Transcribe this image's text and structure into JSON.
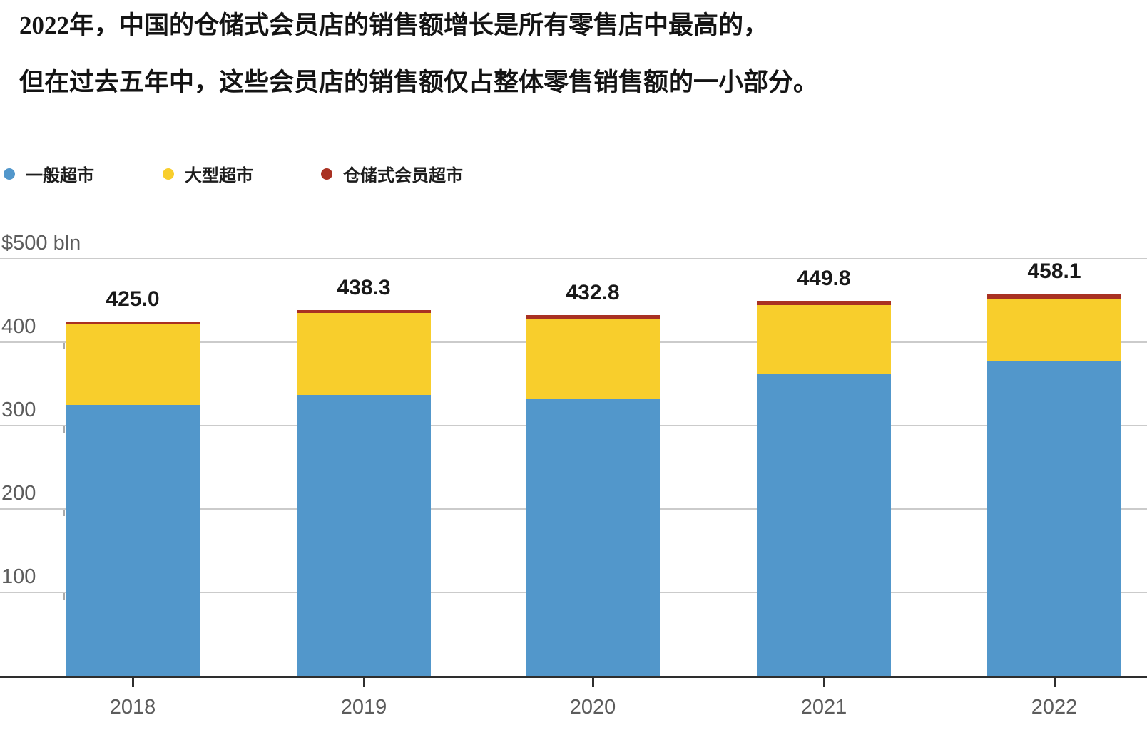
{
  "title": {
    "line1": "2022年，中国的仓储式会员店的销售额增长是所有零售店中最高的，",
    "line2": "但在过去五年中，这些会员店的销售额仅占整体零售销售额的一小部分。"
  },
  "chart_data": {
    "type": "bar",
    "stacked": true,
    "title": "",
    "xlabel": "",
    "ylabel": "$500 bln",
    "categories": [
      "2018",
      "2019",
      "2020",
      "2021",
      "2022"
    ],
    "series": [
      {
        "name": "一般超市",
        "color": "#5297cb",
        "values": [
          325.0,
          337.0,
          332.0,
          362.0,
          378.0
        ]
      },
      {
        "name": "大型超市",
        "color": "#f8ce2c",
        "values": [
          97.0,
          97.8,
          96.3,
          82.3,
          73.1
        ]
      },
      {
        "name": "仓储式会员超市",
        "color": "#a93122",
        "values": [
          3.0,
          3.5,
          4.5,
          5.5,
          7.0
        ]
      }
    ],
    "totals": [
      425.0,
      438.3,
      432.8,
      449.8,
      458.1
    ],
    "total_labels": [
      "425.0",
      "438.3",
      "432.8",
      "449.8",
      "458.1"
    ],
    "yticks": [
      {
        "value": 500,
        "label": "$500 bln"
      },
      {
        "value": 400,
        "label": "400"
      },
      {
        "value": 300,
        "label": "300"
      },
      {
        "value": 200,
        "label": "200"
      },
      {
        "value": 100,
        "label": "100"
      }
    ],
    "ylim": [
      0,
      500
    ],
    "grid": true,
    "legend_position": "top-left"
  },
  "colors": {
    "background": "#ffffff",
    "gridline": "#cbcbcb",
    "axis_line": "#2e2e2e",
    "tick_label": "#5c5c5c",
    "value_label": "#191919"
  }
}
